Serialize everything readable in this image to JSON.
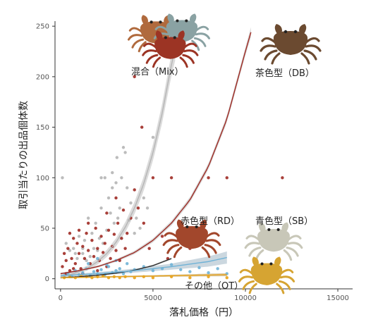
{
  "chart_data": {
    "type": "scatter",
    "xlabel": "落札価格（円）",
    "ylabel": "取引当たりの出品個体数",
    "xlim": [
      -300,
      15800
    ],
    "ylim": [
      -10,
      255
    ],
    "x_ticks": [
      0,
      5000,
      10000,
      15000
    ],
    "y_ticks": [
      0,
      50,
      100,
      150,
      200,
      250
    ],
    "grid": false,
    "annotations": [
      {
        "id": "mix",
        "text": "混合（Mix）"
      },
      {
        "id": "db",
        "text": "茶色型（DB）"
      },
      {
        "id": "rd",
        "text": "赤色型（RD）"
      },
      {
        "id": "sb",
        "text": "青色型（SB）"
      },
      {
        "id": "ot",
        "text": "その他（OT）"
      }
    ],
    "series": [
      {
        "key": "mix",
        "color": "#b5b5b5",
        "ci_color": "#cfcfcf",
        "points": [
          [
            100,
            100
          ],
          [
            300,
            35
          ],
          [
            500,
            28
          ],
          [
            700,
            30
          ],
          [
            900,
            20
          ],
          [
            1000,
            42
          ],
          [
            1200,
            25
          ],
          [
            1300,
            38
          ],
          [
            1500,
            60
          ],
          [
            1600,
            22
          ],
          [
            1700,
            45
          ],
          [
            1800,
            30
          ],
          [
            1900,
            55
          ],
          [
            2000,
            28
          ],
          [
            2100,
            40
          ],
          [
            2200,
            70
          ],
          [
            2300,
            35
          ],
          [
            2400,
            100
          ],
          [
            2500,
            48
          ],
          [
            2600,
            80
          ],
          [
            2700,
            65
          ],
          [
            2800,
            105
          ],
          [
            2900,
            55
          ],
          [
            3000,
            95
          ],
          [
            3050,
            120
          ],
          [
            3100,
            60
          ],
          [
            3200,
            70
          ],
          [
            3300,
            40
          ],
          [
            3400,
            130
          ],
          [
            3500,
            125
          ],
          [
            3600,
            90
          ],
          [
            3700,
            58
          ],
          [
            3800,
            75
          ],
          [
            4000,
            45
          ],
          [
            4100,
            60
          ],
          [
            4300,
            50
          ],
          [
            4500,
            80
          ],
          [
            4700,
            70
          ],
          [
            5000,
            140
          ],
          [
            2200,
            100
          ],
          [
            2800,
            90
          ],
          [
            3300,
            100
          ],
          [
            1200,
            30
          ],
          [
            1400,
            18
          ],
          [
            800,
            25
          ]
        ],
        "fit": [
          [
            0,
            2
          ],
          [
            500,
            4
          ],
          [
            1000,
            7
          ],
          [
            1500,
            11
          ],
          [
            2000,
            17
          ],
          [
            2500,
            25
          ],
          [
            3000,
            36
          ],
          [
            3500,
            51
          ],
          [
            4000,
            70
          ],
          [
            4500,
            94
          ],
          [
            5000,
            125
          ],
          [
            5500,
            164
          ],
          [
            6000,
            212
          ],
          [
            6200,
            228
          ]
        ],
        "ci_halfwidth": [
          [
            0,
            2
          ],
          [
            1000,
            2
          ],
          [
            2000,
            3
          ],
          [
            3000,
            4
          ],
          [
            4000,
            6
          ],
          [
            5000,
            8
          ],
          [
            6000,
            11
          ],
          [
            6200,
            12
          ]
        ]
      },
      {
        "key": "db",
        "color": "#9e2a23",
        "points": [
          [
            100,
            12
          ],
          [
            200,
            25
          ],
          [
            300,
            18
          ],
          [
            400,
            30
          ],
          [
            500,
            8
          ],
          [
            600,
            20
          ],
          [
            700,
            40
          ],
          [
            800,
            15
          ],
          [
            900,
            35
          ],
          [
            1000,
            25
          ],
          [
            1000,
            48
          ],
          [
            1100,
            10
          ],
          [
            1200,
            32
          ],
          [
            1300,
            20
          ],
          [
            1400,
            45
          ],
          [
            1500,
            28
          ],
          [
            1600,
            15
          ],
          [
            1700,
            38
          ],
          [
            1800,
            22
          ],
          [
            1900,
            50
          ],
          [
            2000,
            30
          ],
          [
            2100,
            18
          ],
          [
            2200,
            42
          ],
          [
            2300,
            26
          ],
          [
            2400,
            35
          ],
          [
            2500,
            12
          ],
          [
            2600,
            48
          ],
          [
            2700,
            20
          ],
          [
            2800,
            32
          ],
          [
            2900,
            44
          ],
          [
            3000,
            28
          ],
          [
            3100,
            55
          ],
          [
            3200,
            18
          ],
          [
            3300,
            40
          ],
          [
            3400,
            68
          ],
          [
            3500,
            30
          ],
          [
            3600,
            45
          ],
          [
            3800,
            60
          ],
          [
            4000,
            200
          ],
          [
            4000,
            88
          ],
          [
            4200,
            70
          ],
          [
            4400,
            150
          ],
          [
            4500,
            55
          ],
          [
            4800,
            30
          ],
          [
            5000,
            100
          ],
          [
            5500,
            42
          ],
          [
            5800,
            20
          ],
          [
            6000,
            100
          ],
          [
            6500,
            55
          ],
          [
            7000,
            30
          ],
          [
            8000,
            100
          ],
          [
            9000,
            100
          ],
          [
            12000,
            100
          ],
          [
            3000,
            80
          ],
          [
            2500,
            65
          ],
          [
            500,
            45
          ],
          [
            1500,
            55
          ],
          [
            300,
            5
          ],
          [
            700,
            10
          ],
          [
            1200,
            5
          ],
          [
            2000,
            8
          ]
        ],
        "fit": [
          [
            0,
            5
          ],
          [
            1000,
            8
          ],
          [
            2000,
            12
          ],
          [
            3000,
            18
          ],
          [
            4000,
            26
          ],
          [
            5000,
            38
          ],
          [
            6000,
            55
          ],
          [
            7000,
            78
          ],
          [
            8000,
            111
          ],
          [
            9000,
            158
          ],
          [
            10000,
            225
          ],
          [
            10300,
            244
          ]
        ],
        "ci_halfwidth": [
          [
            0,
            1
          ],
          [
            2000,
            1
          ],
          [
            5000,
            2
          ],
          [
            8000,
            3
          ],
          [
            10000,
            4
          ],
          [
            10300,
            5
          ]
        ]
      },
      {
        "key": "rd",
        "color": "#2b2b2b",
        "points": [],
        "fit": [
          [
            0,
            1
          ],
          [
            1000,
            2
          ],
          [
            2000,
            3.5
          ],
          [
            3000,
            5.5
          ],
          [
            4000,
            8.5
          ],
          [
            5000,
            13
          ],
          [
            6000,
            20
          ]
        ],
        "ci_halfwidth": [
          [
            0,
            0.5
          ],
          [
            6000,
            1
          ]
        ]
      },
      {
        "key": "sb",
        "color": "#6fb2d6",
        "ci_color": "#b9c9d4",
        "points": [
          [
            200,
            3
          ],
          [
            400,
            5
          ],
          [
            600,
            2
          ],
          [
            800,
            8
          ],
          [
            1000,
            4
          ],
          [
            1200,
            6
          ],
          [
            1400,
            10
          ],
          [
            1600,
            3
          ],
          [
            1800,
            7
          ],
          [
            2000,
            5
          ],
          [
            2200,
            9
          ],
          [
            2400,
            4
          ],
          [
            2600,
            12
          ],
          [
            2800,
            6
          ],
          [
            3000,
            8
          ],
          [
            3200,
            10
          ],
          [
            3400,
            5
          ],
          [
            3600,
            15
          ],
          [
            3800,
            7
          ],
          [
            4000,
            9
          ],
          [
            4500,
            12
          ],
          [
            5000,
            8
          ],
          [
            5500,
            10
          ],
          [
            6000,
            14
          ],
          [
            6500,
            9
          ],
          [
            7000,
            7
          ],
          [
            7500,
            11
          ],
          [
            8000,
            6
          ],
          [
            8500,
            10
          ],
          [
            9000,
            5
          ],
          [
            1500,
            15
          ],
          [
            2500,
            14
          ],
          [
            3000,
            18
          ],
          [
            2000,
            20
          ]
        ],
        "fit": [
          [
            0,
            3
          ],
          [
            2000,
            5
          ],
          [
            4000,
            8
          ],
          [
            6000,
            12
          ],
          [
            8000,
            17
          ],
          [
            9000,
            21
          ]
        ],
        "ci_halfwidth": [
          [
            0,
            1
          ],
          [
            4000,
            2
          ],
          [
            6000,
            3
          ],
          [
            8000,
            5
          ],
          [
            9000,
            6
          ]
        ]
      },
      {
        "key": "ot",
        "color": "#e8a21a",
        "ci_color": "#c9b58a",
        "points": [
          [
            200,
            1
          ],
          [
            500,
            2
          ],
          [
            800,
            1
          ],
          [
            1100,
            3
          ],
          [
            1400,
            2
          ],
          [
            1700,
            1
          ],
          [
            2000,
            2
          ],
          [
            2300,
            3
          ],
          [
            2600,
            1
          ],
          [
            2900,
            2
          ],
          [
            3200,
            1
          ],
          [
            3500,
            2
          ],
          [
            4000,
            1
          ],
          [
            4500,
            2
          ],
          [
            5000,
            1
          ],
          [
            6000,
            2
          ],
          [
            7000,
            1
          ],
          [
            8000,
            2
          ],
          [
            9000,
            1
          ]
        ],
        "fit": [
          [
            0,
            1
          ],
          [
            3000,
            2
          ],
          [
            6000,
            3
          ],
          [
            9000,
            4
          ]
        ],
        "ci_halfwidth": [
          [
            0,
            0.5
          ],
          [
            6000,
            1
          ],
          [
            9000,
            1.5
          ]
        ]
      }
    ],
    "icons": [
      "crab-mix-icon",
      "crab-db-icon",
      "crab-rd-icon",
      "crab-sb-icon",
      "crab-ot-icon"
    ]
  }
}
